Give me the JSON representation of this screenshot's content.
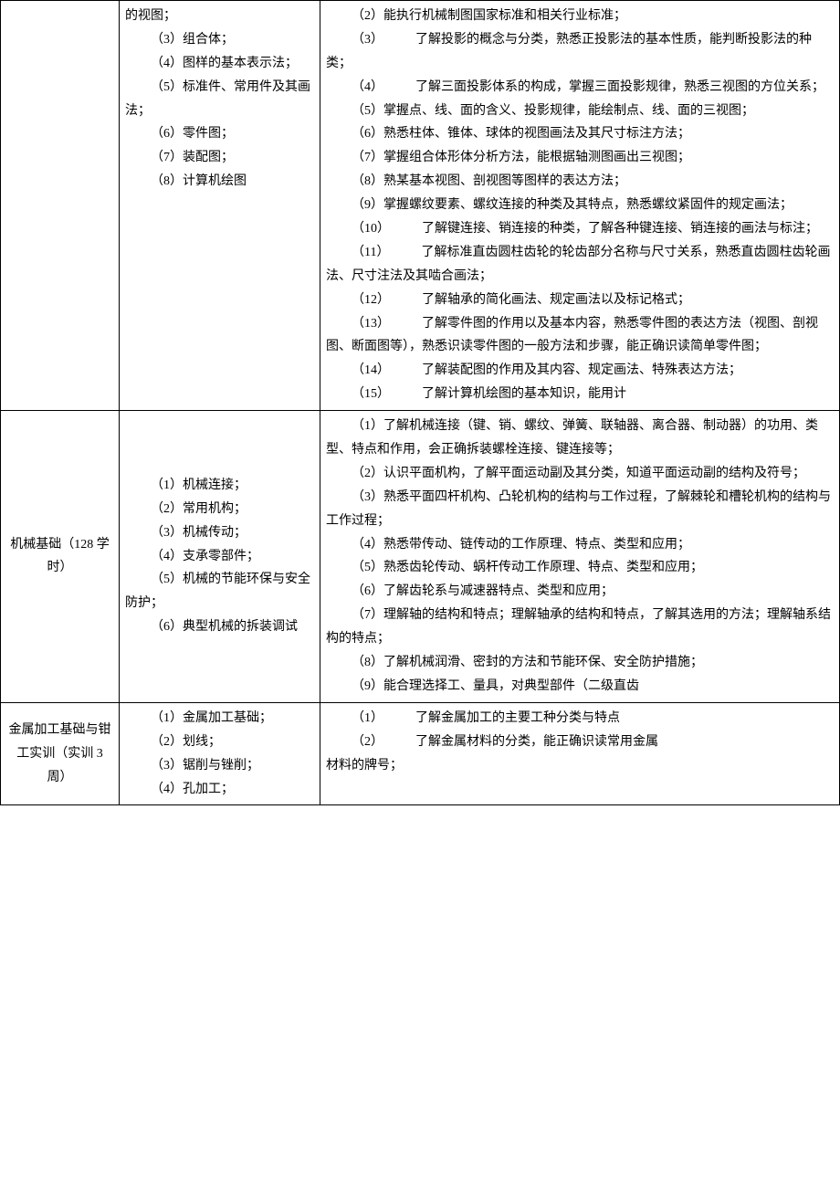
{
  "rows": [
    {
      "col1": "",
      "col2": [
        {
          "text": "的视图；",
          "cls": "cont"
        },
        {
          "text": "（3）组合体；",
          "cls": "indent"
        },
        {
          "text": "（4）图样的基本表示法；",
          "cls": "indent"
        },
        {
          "text": "（5）标准件、常用件及其画法；",
          "cls": "indent"
        },
        {
          "text": "（6）零件图；",
          "cls": "indent"
        },
        {
          "text": "（7）装配图；",
          "cls": "indent"
        },
        {
          "text": "（8）计算机绘图",
          "cls": "indent"
        }
      ],
      "col3": [
        {
          "text": "（2）能执行机械制图国家标准和相关行业标准；",
          "cls": "indent"
        },
        {
          "text": "（3）　　　了解投影的概念与分类，熟悉正投影法的基本性质，能判断投影法的种类；",
          "cls": "indent"
        },
        {
          "text": "（4）　　　了解三面投影体系的构成，掌握三面投影规律，熟悉三视图的方位关系；",
          "cls": "indent"
        },
        {
          "text": "（5）掌握点、线、面的含义、投影规律，能绘制点、线、面的三视图；",
          "cls": "indent"
        },
        {
          "text": "（6）熟悉柱体、锥体、球体的视图画法及其尺寸标注方法；",
          "cls": "indent"
        },
        {
          "text": "（7）掌握组合体形体分析方法，能根据轴测图画出三视图；",
          "cls": "indent"
        },
        {
          "text": "（8）熟某基本视图、剖视图等图样的表达方法；",
          "cls": "indent"
        },
        {
          "text": "（9）掌握螺纹要素、螺纹连接的种类及其特点，熟悉螺纹紧固件的规定画法；",
          "cls": "indent"
        },
        {
          "text": "（10）　　　了解键连接、销连接的种类，了解各种键连接、销连接的画法与标注；",
          "cls": "indent"
        },
        {
          "text": "（11）　　　了解标准直齿圆柱齿轮的轮齿部分名称与尺寸关系，熟悉直齿圆柱齿轮画法、尺寸注法及其啮合画法；",
          "cls": "indent"
        },
        {
          "text": "（12）　　　了解轴承的简化画法、规定画法以及标记格式；",
          "cls": "indent"
        },
        {
          "text": "（13）　　　了解零件图的作用以及基本内容，熟悉零件图的表达方法（视图、剖视图、断面图等），熟悉识读零件图的一般方法和步骤，能正确识读简单零件图；",
          "cls": "indent"
        },
        {
          "text": "（14）　　　了解装配图的作用及其内容、规定画法、特殊表达方法；",
          "cls": "indent"
        },
        {
          "text": "（15）　　　了解计算机绘图的基本知识，能用计",
          "cls": "indent"
        }
      ]
    },
    {
      "col1": "机械基础（128 学时）",
      "col2": [
        {
          "text": "（1）机械连接；",
          "cls": "indent"
        },
        {
          "text": "（2）常用机构；",
          "cls": "indent"
        },
        {
          "text": "（3）机械传动；",
          "cls": "indent"
        },
        {
          "text": "（4）支承零部件；",
          "cls": "indent"
        },
        {
          "text": "（5）机械的节能环保与安全防护；",
          "cls": "indent"
        },
        {
          "text": "（6）典型机械的拆装调试",
          "cls": "indent"
        }
      ],
      "col3": [
        {
          "text": "（1）了解机械连接（键、销、螺纹、弹簧、联轴器、离合器、制动器）的功用、类型、特点和作用，会正确拆装螺栓连接、键连接等；",
          "cls": "indent"
        },
        {
          "text": "（2）认识平面机构，了解平面运动副及其分类，知道平面运动副的结构及符号；",
          "cls": "indent"
        },
        {
          "text": "（3）熟悉平面四杆机构、凸轮机构的结构与工作过程，了解棘轮和槽轮机构的结构与工作过程；",
          "cls": "indent"
        },
        {
          "text": "（4）熟悉带传动、链传动的工作原理、特点、类型和应用；",
          "cls": "indent"
        },
        {
          "text": "（5）熟悉齿轮传动、蜗杆传动工作原理、特点、类型和应用；",
          "cls": "indent"
        },
        {
          "text": "（6）了解齿轮系与减速器特点、类型和应用；",
          "cls": "indent"
        },
        {
          "text": "（7）理解轴的结构和特点；理解轴承的结构和特点，了解其选用的方法；理解轴系结构的特点；",
          "cls": "indent"
        },
        {
          "text": "（8）了解机械润滑、密封的方法和节能环保、安全防护措施；",
          "cls": "indent"
        },
        {
          "text": "（9）能合理选择工、量具，对典型部件（二级直齿",
          "cls": "indent"
        }
      ]
    },
    {
      "col1": "金属加工基础与钳工实训（实训 3 周）",
      "col2": [
        {
          "text": "（1）金属加工基础；",
          "cls": "indent"
        },
        {
          "text": "（2）划线；",
          "cls": "indent"
        },
        {
          "text": "（3）锯削与锉削；",
          "cls": "indent"
        },
        {
          "text": "（4）孔加工；",
          "cls": "indent"
        }
      ],
      "col3": [
        {
          "text": "（1）　　　了解金属加工的主要工种分类与特点",
          "cls": "indent"
        },
        {
          "text": "（2）　　　了解金属材料的分类，能正确识读常用金属",
          "cls": "indent"
        },
        {
          "text": "材料的牌号；",
          "cls": "cont"
        }
      ]
    }
  ]
}
